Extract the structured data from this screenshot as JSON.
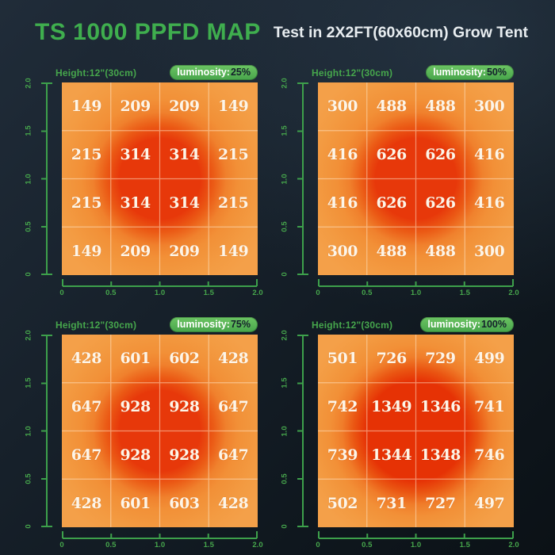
{
  "header": {
    "title": "TS 1000 PPFD MAP",
    "subtitle": "Test in 2X2FT(60x60cm) Grow Tent"
  },
  "colors": {
    "accent_green": "#3fae4e",
    "badge_green": "#4fae52",
    "axis_green": "#3da04b",
    "heat_low": "#f4a049",
    "heat_mid": "#f08a33",
    "heat_high": "#e7380a",
    "value_text": "#fdf5e8",
    "badge_value_text": "#14212b"
  },
  "chart_data": [
    {
      "type": "heatmap",
      "name": "PPFD map at luminosity 25%",
      "height_label": "Height:12\"(30cm)",
      "luminosity_label": "luminosity:",
      "luminosity_value": "25%",
      "heat_profile": "standard",
      "x_range": [
        0,
        2
      ],
      "y_range": [
        0,
        2
      ],
      "x_ticks": [
        "0",
        "0.5",
        "1.0",
        "1.5",
        "2.0"
      ],
      "y_ticks": [
        "2.0",
        "1.5",
        "1.0",
        "0.5",
        "0"
      ],
      "values": [
        [
          149,
          209,
          209,
          149
        ],
        [
          215,
          314,
          314,
          215
        ],
        [
          215,
          314,
          314,
          215
        ],
        [
          149,
          209,
          209,
          149
        ]
      ]
    },
    {
      "type": "heatmap",
      "name": "PPFD map at luminosity 50%",
      "height_label": "Height:12\"(30cm)",
      "luminosity_label": "luminosity:",
      "luminosity_value": "50%",
      "heat_profile": "standard",
      "x_range": [
        0,
        2
      ],
      "y_range": [
        0,
        2
      ],
      "x_ticks": [
        "0",
        "0.5",
        "1.0",
        "1.5",
        "2.0"
      ],
      "y_ticks": [
        "2.0",
        "1.5",
        "1.0",
        "0.5",
        "0"
      ],
      "values": [
        [
          300,
          488,
          488,
          300
        ],
        [
          416,
          626,
          626,
          416
        ],
        [
          416,
          626,
          626,
          416
        ],
        [
          300,
          488,
          488,
          300
        ]
      ]
    },
    {
      "type": "heatmap",
      "name": "PPFD map at luminosity 75%",
      "height_label": "Height:12\"(30cm)",
      "luminosity_label": "luminosity:",
      "luminosity_value": "75%",
      "heat_profile": "standard",
      "x_range": [
        0,
        2
      ],
      "y_range": [
        0,
        2
      ],
      "x_ticks": [
        "0",
        "0.5",
        "1.0",
        "1.5",
        "2.0"
      ],
      "y_ticks": [
        "2.0",
        "1.5",
        "1.0",
        "0.5",
        "0"
      ],
      "values": [
        [
          428,
          601,
          602,
          428
        ],
        [
          647,
          928,
          928,
          647
        ],
        [
          647,
          928,
          928,
          647
        ],
        [
          428,
          601,
          603,
          428
        ]
      ]
    },
    {
      "type": "heatmap",
      "name": "PPFD map at luminosity 100%",
      "height_label": "Height:12\"(30cm)",
      "luminosity_label": "luminosity:",
      "luminosity_value": "100%",
      "heat_profile": "intense",
      "x_range": [
        0,
        2
      ],
      "y_range": [
        0,
        2
      ],
      "x_ticks": [
        "0",
        "0.5",
        "1.0",
        "1.5",
        "2.0"
      ],
      "y_ticks": [
        "2.0",
        "1.5",
        "1.0",
        "0.5",
        "0"
      ],
      "values": [
        [
          501,
          726,
          729,
          499
        ],
        [
          742,
          1349,
          1346,
          741
        ],
        [
          739,
          1344,
          1348,
          746
        ],
        [
          502,
          731,
          727,
          497
        ]
      ]
    }
  ]
}
